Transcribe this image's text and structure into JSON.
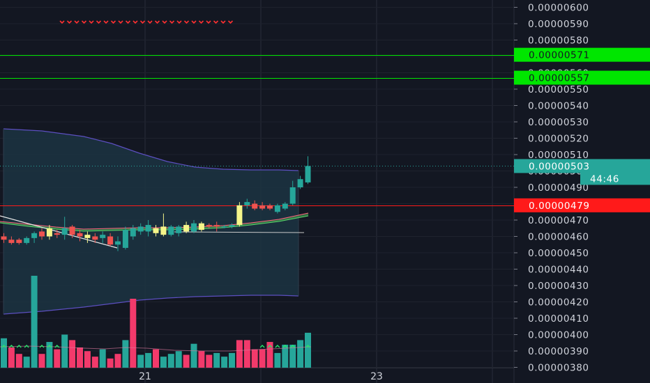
{
  "chart_data": {
    "type": "candlestick",
    "y_axis": {
      "ticks": [
        "0.00000380",
        "0.00000390",
        "0.00000400",
        "0.00000410",
        "0.00000420",
        "0.00000430",
        "0.00000440",
        "0.00000450",
        "0.00000460",
        "0.00000470",
        "0.00000480",
        "0.00000490",
        "0.00000500",
        "0.00000510",
        "0.00000520",
        "0.00000530",
        "0.00000540",
        "0.00000550",
        "0.00000560",
        "0.00000570",
        "0.00000580",
        "0.00000590",
        "0.00000600"
      ],
      "range": [
        3.8e-06,
        6e-06
      ]
    },
    "x_axis": {
      "ticks": [
        {
          "label": "21",
          "t": 21
        },
        {
          "label": "23",
          "t": 23
        }
      ],
      "range": [
        19.3,
        24.0
      ]
    },
    "horizontal_lines": [
      {
        "price": 5.71e-06,
        "label": "0.00000571",
        "color": "#00e600",
        "badge_bg": "#00e600",
        "badge_fg": "#131722"
      },
      {
        "price": 5.57e-06,
        "label": "0.00000557",
        "color": "#00e600",
        "badge_bg": "#00e600",
        "badge_fg": "#131722"
      },
      {
        "price": 4.79e-06,
        "label": "0.00000479",
        "color": "#ff1a1a",
        "badge_bg": "#ff1a1a",
        "badge_fg": "#ffffff"
      }
    ],
    "last_price": {
      "price": 5.03e-06,
      "label": "0.00000503",
      "countdown": "44:46",
      "color": "#26a69a"
    },
    "candles": [
      [
        4.6e-06,
        4.62e-06,
        4.56e-06,
        4.58e-06
      ],
      [
        4.58e-06,
        4.6e-06,
        4.55e-06,
        4.56e-06
      ],
      [
        4.58e-06,
        4.59e-06,
        4.55e-06,
        4.56e-06
      ],
      [
        4.56e-06,
        4.6e-06,
        4.55e-06,
        4.59e-06
      ],
      [
        4.59e-06,
        4.63e-06,
        4.56e-06,
        4.62e-06
      ],
      [
        4.63e-06,
        4.65e-06,
        4.58e-06,
        4.6e-06
      ],
      [
        4.6e-06,
        4.67e-06,
        4.58e-06,
        4.65e-06
      ],
      [
        4.62e-06,
        4.64e-06,
        4.59e-06,
        4.61e-06
      ],
      [
        4.61e-06,
        4.72e-06,
        4.58e-06,
        4.65e-06
      ],
      [
        4.66e-06,
        4.67e-06,
        4.59e-06,
        4.61e-06
      ],
      [
        4.62e-06,
        4.64e-06,
        4.57e-06,
        4.6e-06
      ],
      [
        4.61e-06,
        4.63e-06,
        4.56e-06,
        4.59e-06
      ],
      [
        4.6e-06,
        4.62e-06,
        4.56e-06,
        4.58e-06
      ],
      [
        4.59e-06,
        4.63e-06,
        4.56e-06,
        4.61e-06
      ],
      [
        4.6e-06,
        4.62e-06,
        4.54e-06,
        4.55e-06
      ],
      [
        4.55e-06,
        4.6e-06,
        4.51e-06,
        4.57e-06
      ],
      [
        4.53e-06,
        4.66e-06,
        4.52e-06,
        4.64e-06
      ],
      [
        4.6e-06,
        4.67e-06,
        4.58e-06,
        4.65e-06
      ],
      [
        4.63e-06,
        4.68e-06,
        4.61e-06,
        4.66e-06
      ],
      [
        4.63e-06,
        4.7e-06,
        4.6e-06,
        4.67e-06
      ],
      [
        4.65e-06,
        4.67e-06,
        4.6e-06,
        4.62e-06
      ],
      [
        4.66e-06,
        4.74e-06,
        4.6e-06,
        4.61e-06
      ],
      [
        4.61e-06,
        4.67e-06,
        4.6e-06,
        4.66e-06
      ],
      [
        4.62e-06,
        4.67e-06,
        4.6e-06,
        4.66e-06
      ],
      [
        4.67e-06,
        4.69e-06,
        4.62e-06,
        4.63e-06
      ],
      [
        4.63e-06,
        4.7e-06,
        4.62e-06,
        4.68e-06
      ],
      [
        4.68e-06,
        4.69e-06,
        4.63e-06,
        4.64e-06
      ],
      [
        4.67e-06,
        4.68e-06,
        4.65e-06,
        4.66e-06
      ],
      [
        4.67e-06,
        4.69e-06,
        4.63e-06,
        4.66e-06
      ],
      [
        4.66e-06,
        4.67e-06,
        4.65e-06,
        4.66e-06
      ],
      [
        4.66e-06,
        4.68e-06,
        4.65e-06,
        4.67e-06
      ],
      [
        4.67e-06,
        4.81e-06,
        4.66e-06,
        4.79e-06
      ],
      [
        4.79e-06,
        4.83e-06,
        4.77e-06,
        4.81e-06
      ],
      [
        4.8e-06,
        4.82e-06,
        4.76e-06,
        4.77e-06
      ],
      [
        4.79e-06,
        4.81e-06,
        4.76e-06,
        4.77e-06
      ],
      [
        4.79e-06,
        4.8e-06,
        4.76e-06,
        4.77e-06
      ],
      [
        4.75e-06,
        4.8e-06,
        4.74e-06,
        4.79e-06
      ],
      [
        4.77e-06,
        4.81e-06,
        4.76e-06,
        4.8e-06
      ],
      [
        4.8e-06,
        4.94e-06,
        4.79e-06,
        4.9e-06
      ],
      [
        4.9e-06,
        4.97e-06,
        4.89e-06,
        4.95e-06
      ],
      [
        4.93e-06,
        5.09e-06,
        4.92e-06,
        5.03e-06
      ]
    ],
    "highlight_candles": [
      6,
      11,
      20,
      21,
      24,
      26,
      31
    ],
    "volume": [
      32,
      22,
      15,
      12,
      100,
      15,
      28,
      20,
      36,
      30,
      22,
      18,
      12,
      20,
      10,
      15,
      30,
      75,
      14,
      16,
      20,
      12,
      15,
      18,
      14,
      26,
      18,
      14,
      16,
      12,
      16,
      30,
      30,
      20,
      20,
      28,
      16,
      25,
      25,
      30,
      38
    ],
    "volume_colors": [
      "up",
      "down",
      "down",
      "up",
      "up",
      "down",
      "up",
      "down",
      "up",
      "down",
      "down",
      "down",
      "down",
      "up",
      "down",
      "down",
      "up",
      "down",
      "up",
      "up",
      "down",
      "up",
      "up",
      "up",
      "down",
      "up",
      "down",
      "down",
      "up",
      "up",
      "up",
      "down",
      "down",
      "down",
      "down",
      "down",
      "up",
      "up",
      "up",
      "up",
      "up"
    ],
    "colors": {
      "up": "#26a69a",
      "down": "#ef5350",
      "highlight": "#f5f58a",
      "volume_up": "#26a69a",
      "volume_down": "#f23a6b"
    }
  }
}
